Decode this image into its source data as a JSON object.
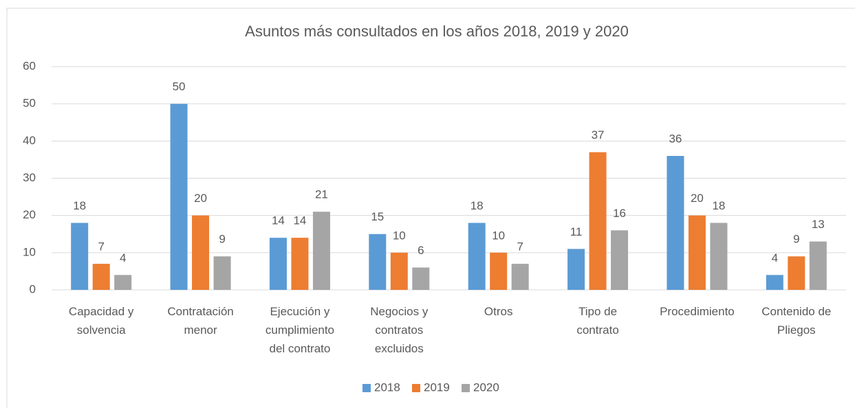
{
  "chart_data": {
    "type": "bar",
    "title": "Asuntos más consultados en los años 2018, 2019 y 2020",
    "categories": [
      "Capacidad y solvencia",
      "Contratación menor",
      "Ejecución y cumplimiento del contrato",
      "Negocios y contratos excluidos",
      "Otros",
      "Tipo de contrato",
      "Procedimiento",
      "Contenido de Pliegos"
    ],
    "series": [
      {
        "name": "2018",
        "color": "#5b9bd5",
        "values": [
          18,
          50,
          14,
          15,
          18,
          11,
          36,
          4
        ]
      },
      {
        "name": "2019",
        "color": "#ed7d31",
        "values": [
          7,
          20,
          14,
          10,
          10,
          37,
          20,
          9
        ]
      },
      {
        "name": "2020",
        "color": "#a5a5a5",
        "values": [
          4,
          9,
          21,
          6,
          7,
          16,
          18,
          13
        ]
      }
    ],
    "ylim": [
      0,
      60
    ],
    "yticks": [
      0,
      10,
      20,
      30,
      40,
      50,
      60
    ],
    "grid": true,
    "legend": "bottom"
  }
}
